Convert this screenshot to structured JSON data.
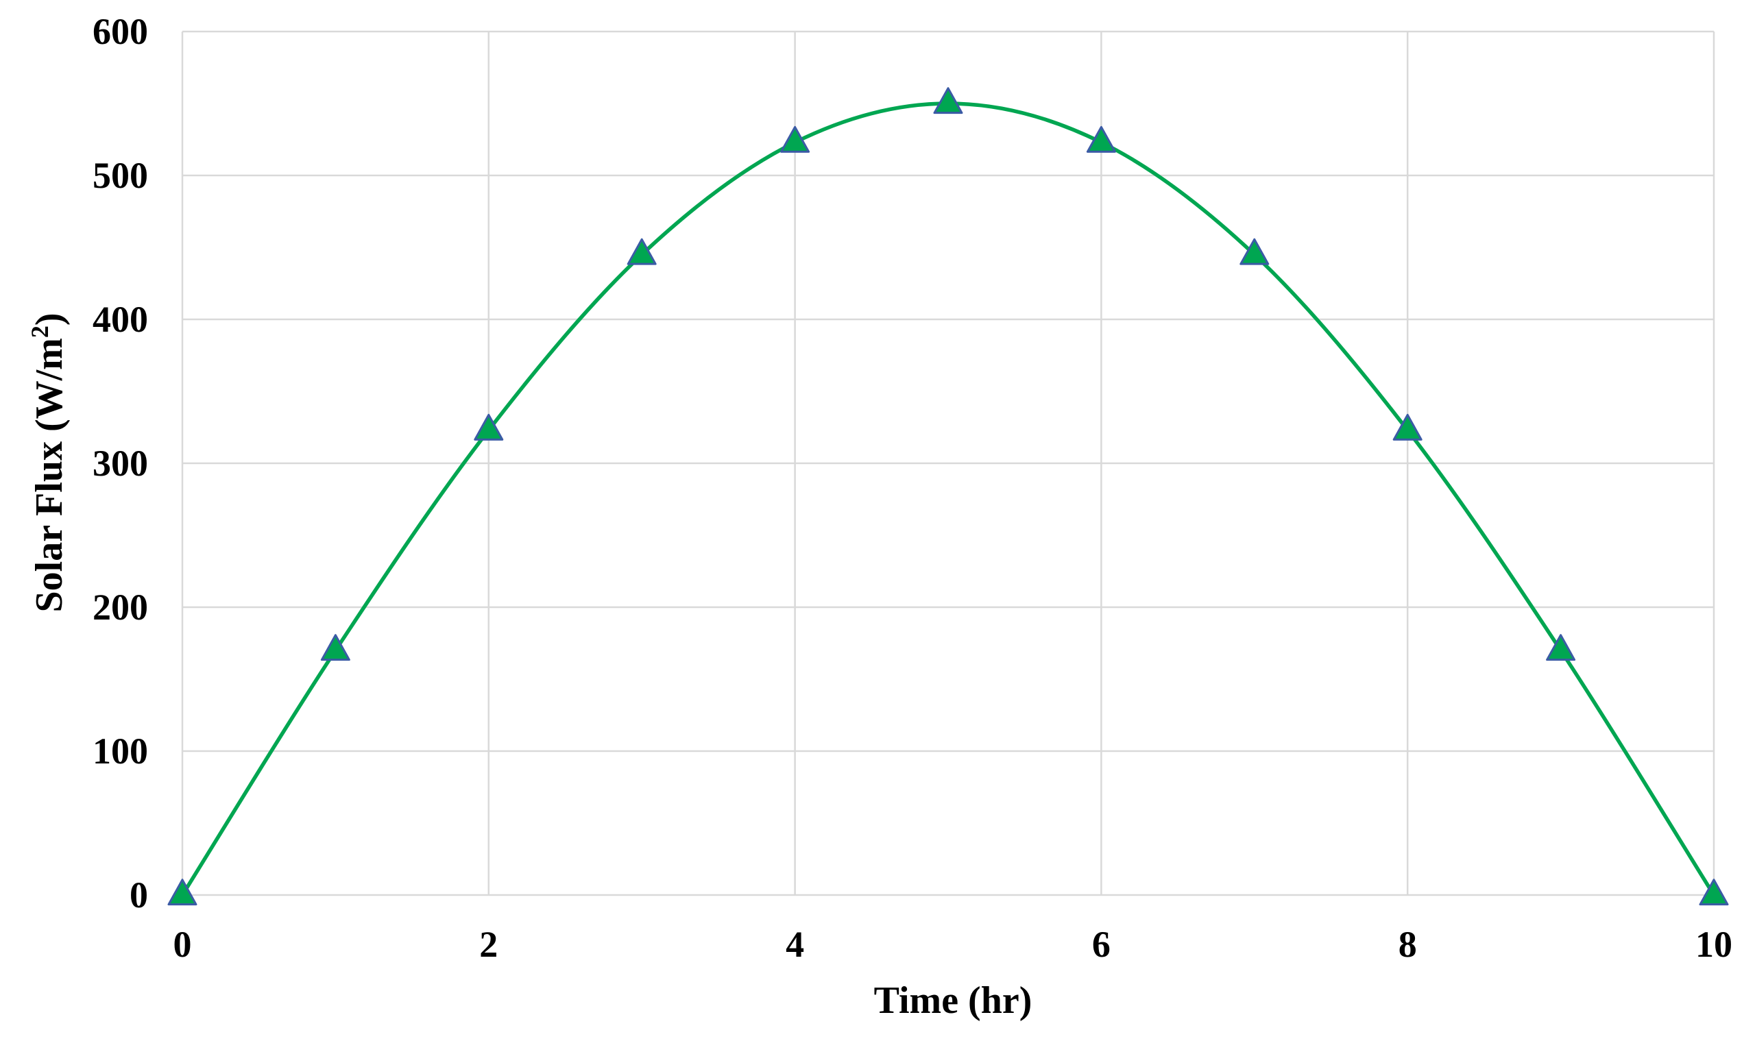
{
  "chart_data": {
    "type": "line",
    "title": "",
    "xlabel": "Time (hr)",
    "ylabel_main": "Solar Flux (W/m",
    "ylabel_sup": "2",
    "ylabel_end": ")",
    "xlim": [
      0,
      10
    ],
    "ylim": [
      0,
      600
    ],
    "x_ticks": [
      "0",
      "2",
      "4",
      "6",
      "8",
      "10"
    ],
    "y_ticks": [
      "0",
      "100",
      "200",
      "300",
      "400",
      "500",
      "600"
    ],
    "x_tick_values": [
      0,
      2,
      4,
      6,
      8,
      10
    ],
    "y_tick_values": [
      0,
      100,
      200,
      300,
      400,
      500,
      600
    ],
    "grid": true,
    "legend": "none",
    "series": [
      {
        "x": [
          0,
          1,
          2,
          3,
          4,
          5,
          6,
          7,
          8,
          9,
          10
        ],
        "values": [
          0,
          170,
          323,
          445,
          523,
          550,
          523,
          445,
          323,
          170,
          0
        ],
        "line_color": "#00a651",
        "marker": "triangle",
        "marker_fill": "#00a651",
        "marker_edge": "#3b5ba5"
      }
    ]
  }
}
